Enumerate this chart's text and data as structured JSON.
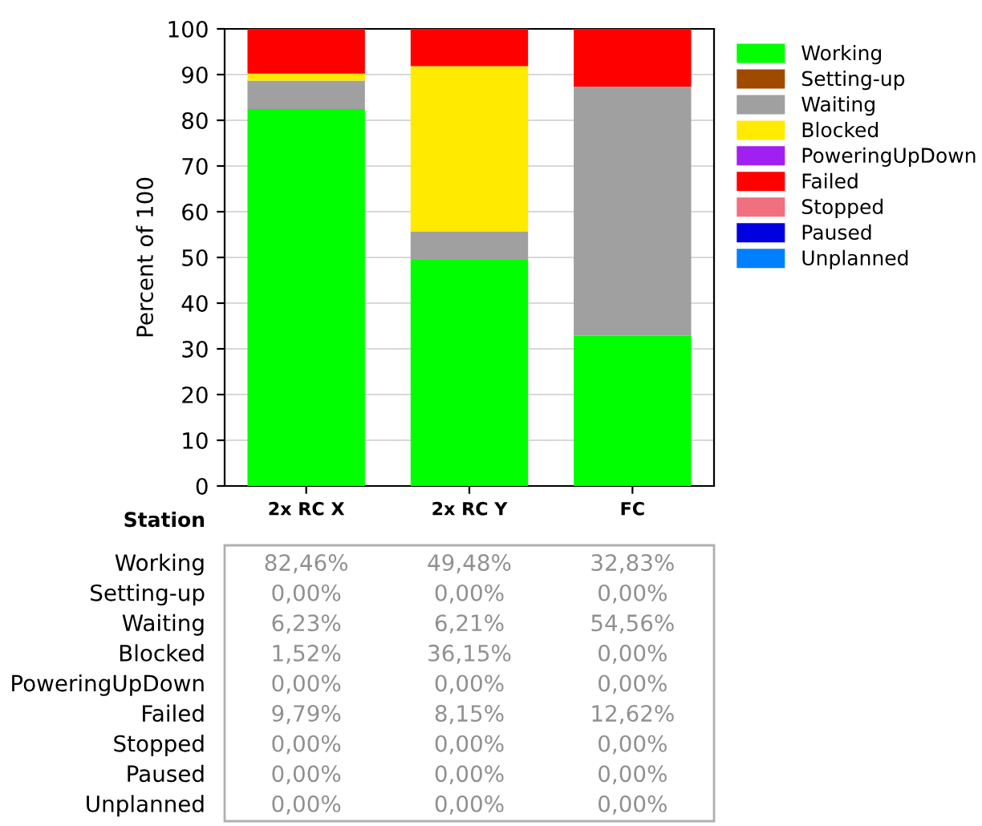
{
  "chart_data": {
    "type": "bar",
    "stacked": true,
    "xlabel": "Station",
    "ylabel": "Percent of 100",
    "categories": [
      "2x RC X",
      "2x RC Y",
      "FC"
    ],
    "ylim": [
      0,
      100
    ],
    "yticks": [
      0,
      10,
      20,
      30,
      40,
      50,
      60,
      70,
      80,
      90,
      100
    ],
    "grid": "y",
    "legend": "top right",
    "series": [
      {
        "name": "Working",
        "color": "#00ff00",
        "values": [
          82.46,
          49.48,
          32.83
        ],
        "value_labels": [
          "82,46%",
          "49,48%",
          "32,83%"
        ]
      },
      {
        "name": "Setting-up",
        "color": "#a04a00",
        "values": [
          0,
          0,
          0
        ],
        "value_labels": [
          "0,00%",
          "0,00%",
          "0,00%"
        ]
      },
      {
        "name": "Waiting",
        "color": "#a0a0a0",
        "values": [
          6.23,
          6.21,
          54.56
        ],
        "value_labels": [
          "6,23%",
          "6,21%",
          "54,56%"
        ]
      },
      {
        "name": "Blocked",
        "color": "#ffea00",
        "values": [
          1.52,
          36.15,
          0
        ],
        "value_labels": [
          "1,52%",
          "36,15%",
          "0,00%"
        ]
      },
      {
        "name": "PoweringUpDown",
        "color": "#a020f0",
        "values": [
          0,
          0,
          0
        ],
        "value_labels": [
          "0,00%",
          "0,00%",
          "0,00%"
        ]
      },
      {
        "name": "Failed",
        "color": "#ff0000",
        "values": [
          9.79,
          8.15,
          12.62
        ],
        "value_labels": [
          "9,79%",
          "8,15%",
          "12,62%"
        ]
      },
      {
        "name": "Stopped",
        "color": "#f07080",
        "values": [
          0,
          0,
          0
        ],
        "value_labels": [
          "0,00%",
          "0,00%",
          "0,00%"
        ]
      },
      {
        "name": "Paused",
        "color": "#0000e0",
        "values": [
          0,
          0,
          0
        ],
        "value_labels": [
          "0,00%",
          "0,00%",
          "0,00%"
        ]
      },
      {
        "name": "Unplanned",
        "color": "#0080ff",
        "values": [
          0,
          0,
          0
        ],
        "value_labels": [
          "0,00%",
          "0,00%",
          "0,00%"
        ]
      }
    ]
  }
}
